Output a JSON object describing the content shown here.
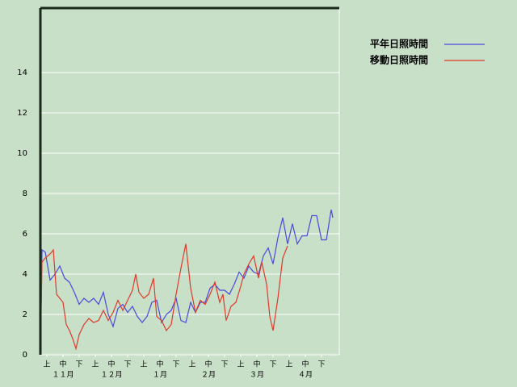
{
  "chart_data": {
    "type": "line",
    "xlim": [
      0,
      185
    ],
    "ylim": [
      0,
      17.2
    ],
    "yticks": [
      0,
      2,
      4,
      6,
      8,
      10,
      12,
      14
    ],
    "grid": true,
    "xticks": [
      {
        "value": 4,
        "label": "上"
      },
      {
        "value": 14,
        "label": "中"
      },
      {
        "value": 24,
        "label": "下"
      },
      {
        "value": 34,
        "label": "上"
      },
      {
        "value": 44,
        "label": "中"
      },
      {
        "value": 54,
        "label": "下"
      },
      {
        "value": 64,
        "label": "上"
      },
      {
        "value": 74,
        "label": "中"
      },
      {
        "value": 84,
        "label": "下"
      },
      {
        "value": 94,
        "label": "上"
      },
      {
        "value": 104,
        "label": "中"
      },
      {
        "value": 114,
        "label": "下"
      },
      {
        "value": 124,
        "label": "上"
      },
      {
        "value": 134,
        "label": "中"
      },
      {
        "value": 144,
        "label": "下"
      },
      {
        "value": 154,
        "label": "上"
      },
      {
        "value": 164,
        "label": "中"
      },
      {
        "value": 174,
        "label": "下"
      }
    ],
    "month_labels": [
      {
        "value": 14,
        "label": "１１月"
      },
      {
        "value": 44,
        "label": "１２月"
      },
      {
        "value": 74,
        "label": "１月"
      },
      {
        "value": 104,
        "label": "２月"
      },
      {
        "value": 134,
        "label": "３月"
      },
      {
        "value": 164,
        "label": "４月"
      }
    ],
    "legend": "top-right",
    "series": [
      {
        "name": "平年日照時間",
        "color": "#4a4ae0",
        "x": [
          0,
          1,
          3,
          6,
          9,
          12,
          15,
          18,
          21,
          24,
          27,
          30,
          33,
          36,
          39,
          42,
          45,
          48,
          51,
          54,
          57,
          60,
          63,
          66,
          69,
          72,
          75,
          78,
          81,
          84,
          87,
          90,
          93,
          96,
          99,
          102,
          105,
          108,
          111,
          114,
          117,
          120,
          123,
          126,
          129,
          132,
          135,
          138,
          141,
          144,
          147,
          150,
          153,
          156,
          159,
          162,
          165,
          168,
          171,
          174,
          177,
          180,
          181
        ],
        "values": [
          0,
          5.2,
          5.1,
          3.7,
          4.0,
          4.4,
          3.8,
          3.6,
          3.1,
          2.5,
          2.8,
          2.6,
          2.8,
          2.5,
          3.1,
          2.0,
          1.4,
          2.3,
          2.5,
          2.1,
          2.4,
          1.9,
          1.6,
          1.9,
          2.6,
          2.7,
          1.6,
          2.0,
          2.2,
          2.8,
          1.7,
          1.6,
          2.6,
          2.1,
          2.6,
          2.6,
          3.3,
          3.5,
          3.2,
          3.2,
          3.0,
          3.5,
          4.1,
          3.8,
          4.4,
          4.1,
          4.0,
          4.9,
          5.3,
          4.5,
          5.8,
          6.8,
          5.5,
          6.5,
          5.5,
          5.9,
          5.9,
          6.9,
          6.9,
          5.7,
          5.7,
          7.2,
          6.8
        ]
      },
      {
        "name": "移動日照時間",
        "color": "#e03a2a",
        "x": [
          0,
          1,
          3,
          6,
          8,
          10,
          12,
          14,
          16,
          18,
          20,
          22,
          24,
          27,
          30,
          33,
          36,
          39,
          42,
          45,
          48,
          51,
          54,
          57,
          59,
          61,
          64,
          67,
          70,
          72,
          75,
          78,
          81,
          84,
          87,
          90,
          93,
          96,
          99,
          102,
          105,
          108,
          111,
          113,
          115,
          118,
          121,
          124,
          126,
          129,
          132,
          135,
          137,
          140,
          142,
          144,
          147,
          150,
          153
        ],
        "values": [
          0,
          4.6,
          4.8,
          5.0,
          5.2,
          3.0,
          2.8,
          2.6,
          1.5,
          1.2,
          0.8,
          0.3,
          1.0,
          1.5,
          1.8,
          1.6,
          1.7,
          2.2,
          1.7,
          2.1,
          2.7,
          2.2,
          2.7,
          3.2,
          4.0,
          3.1,
          2.8,
          3.0,
          3.8,
          1.9,
          1.7,
          1.2,
          1.5,
          3.0,
          4.3,
          5.5,
          3.3,
          2.1,
          2.7,
          2.5,
          3.0,
          3.6,
          2.6,
          3.0,
          1.7,
          2.4,
          2.6,
          3.4,
          4.0,
          4.5,
          4.9,
          3.8,
          4.6,
          3.5,
          1.9,
          1.2,
          2.8,
          4.8,
          5.4
        ]
      }
    ]
  }
}
